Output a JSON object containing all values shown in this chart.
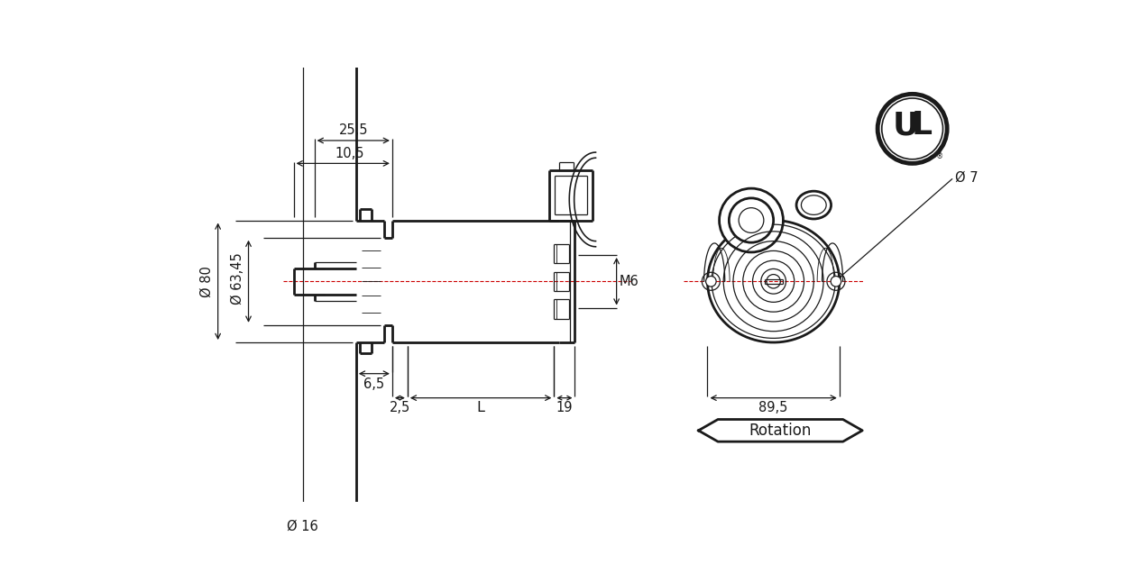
{
  "bg_color": "#ffffff",
  "line_color": "#1a1a1a",
  "centerline_color": "#cc0000",
  "thick_lw": 2.0,
  "thin_lw": 0.9,
  "dim_lw": 0.9,
  "figsize": [
    12.43,
    6.26
  ],
  "dpi": 100,
  "annotations": {
    "dim_255": "25,5",
    "dim_105": "10,5",
    "dim_80": "Ø 80",
    "dim_6345": "Ø 63,45",
    "dim_16": "Ø 16",
    "dim_65": "6,5",
    "dim_25": "2,5",
    "dim_L": "L",
    "dim_19": "19",
    "dim_M6": "M6",
    "dim_895": "89,5",
    "dim_7": "Ø 7",
    "rotation": "Rotation"
  }
}
